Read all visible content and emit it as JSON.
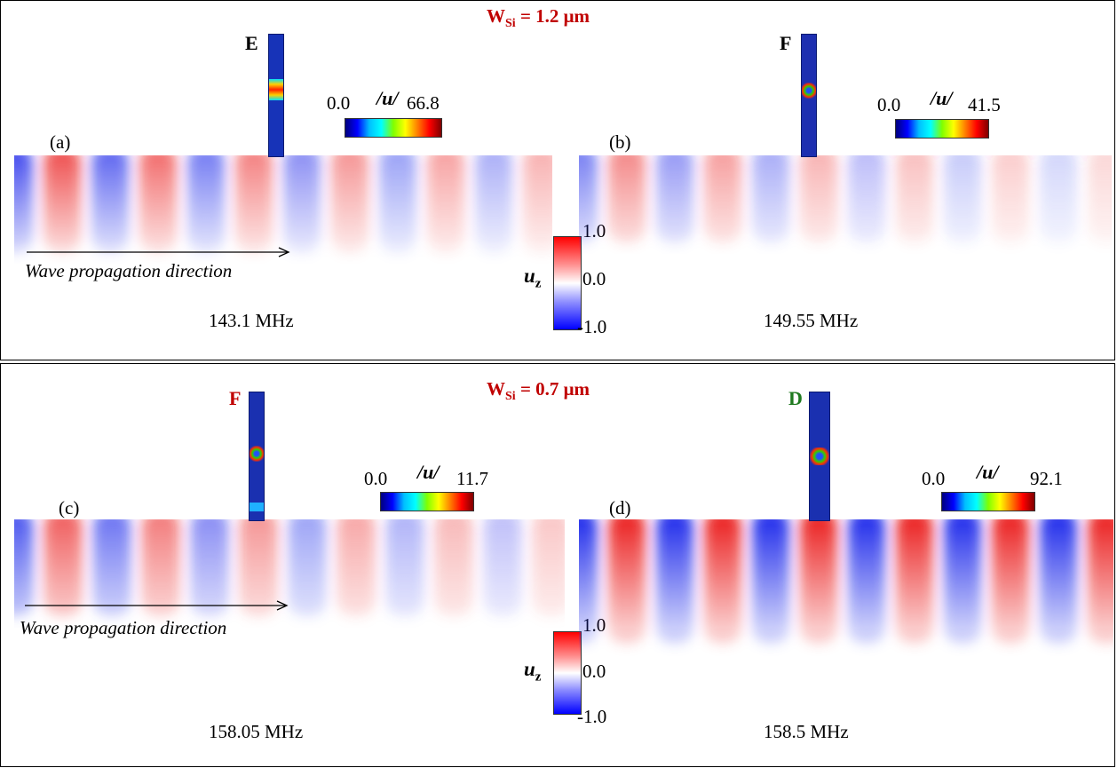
{
  "colors": {
    "top_title": "#c00000",
    "mode_F_bottom": "#c00000",
    "mode_D": "#1f7a1f",
    "mode_default": "#000000"
  },
  "top": {
    "title_main": "W",
    "title_sub": "Si",
    "title_value": " = 1.2 μm",
    "panels": [
      {
        "label": "(a)",
        "mode": "E",
        "cb_min": "0.0",
        "cb_title": "/u/",
        "cb_max": "66.8",
        "freq": "143.1 MHz",
        "wave": {
          "amp": 0.85,
          "decay": 0.16
        }
      },
      {
        "label": "(b)",
        "mode": "F",
        "cb_min": "0.0",
        "cb_title": "/u/",
        "cb_max": "41.5",
        "freq": "149.55 MHz",
        "wave": {
          "amp": 0.6,
          "decay": 0.22
        }
      }
    ],
    "arrow_text": "Wave propagation direction",
    "uz_bar": {
      "label": "u",
      "sub": "z",
      "max": "1.0",
      "mid": "0.0",
      "min": "-1.0"
    }
  },
  "bottom": {
    "title_main": "W",
    "title_sub": "Si",
    "title_value": " = 0.7 μm",
    "panels": [
      {
        "label": "(c)",
        "mode": "F",
        "cb_min": "0.0",
        "cb_title": "/u/",
        "cb_max": "11.7",
        "freq": "158.05 MHz",
        "wave": {
          "amp": 0.8,
          "decay": 0.2
        }
      },
      {
        "label": "(d)",
        "mode": "D",
        "cb_min": "0.0",
        "cb_title": "/u/",
        "cb_max": "92.1",
        "freq": "158.5 MHz",
        "wave": {
          "amp": 1.0,
          "decay": 0.0
        }
      }
    ],
    "arrow_text": "Wave propagation direction",
    "uz_bar": {
      "label": "u",
      "sub": "z",
      "max": "1.0",
      "mid": "0.0",
      "min": "-1.0"
    }
  }
}
